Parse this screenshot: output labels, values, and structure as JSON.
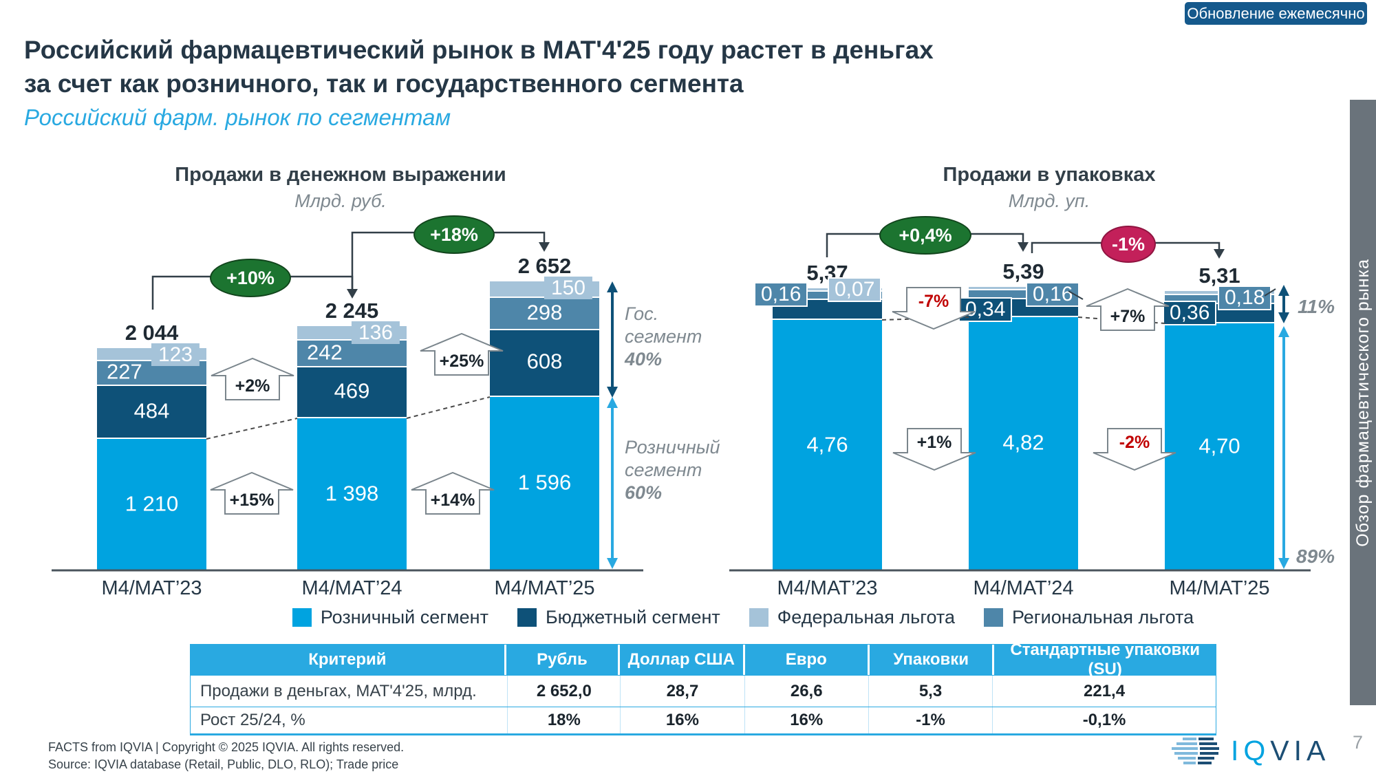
{
  "badge": {
    "label": "Обновление ежемесячно"
  },
  "header": {
    "title_line1": "Российский фармацевтический рынок в MAT'4'25 году растет в деньгах",
    "title_line2": "за счет как розничного, так и государственного сегмента",
    "subtitle": "Российский фарм. рынок по сегментам"
  },
  "side_tab": {
    "label": "Обзор фармацевтического рынка"
  },
  "colors": {
    "retail": "#00A3E0",
    "budget": "#0E5178",
    "regional": "#4E86A9",
    "federal": "#A5C3D9",
    "green": "#1C7430",
    "crimson": "#C3205A",
    "red_text": "#C00000",
    "table_header": "#29A9E1",
    "badge_bg": "#15598C",
    "tab_bg": "#6A737B"
  },
  "legend": {
    "items": [
      {
        "key": "retail",
        "label": "Розничный сегмент"
      },
      {
        "key": "budget",
        "label": "Бюджетный сегмент"
      },
      {
        "key": "federal",
        "label": "Федеральная льгота"
      },
      {
        "key": "regional",
        "label": "Региональная льгота"
      }
    ]
  },
  "chart_data": [
    {
      "id": "sales-money",
      "type": "bar",
      "subtype": "stacked",
      "title": "Продажи в денежном выражении",
      "unit": "Млрд. руб.",
      "categories": [
        "M4/MAT’23",
        "M4/MAT’24",
        "M4/MAT’25"
      ],
      "totals": [
        2044,
        2245,
        2652
      ],
      "total_labels": [
        "2 044",
        "2 245",
        "2 652"
      ],
      "series": [
        {
          "name": "Розничный сегмент",
          "key": "retail",
          "values": [
            1210,
            1398,
            1596
          ],
          "labels": [
            "1 210",
            "1 398",
            "1 596"
          ]
        },
        {
          "name": "Бюджетный сегмент",
          "key": "budget",
          "values": [
            484,
            469,
            608
          ],
          "labels": [
            "484",
            "469",
            "608"
          ]
        },
        {
          "name": "Региональная льгота",
          "key": "regional",
          "values": [
            227,
            242,
            298
          ],
          "labels": [
            "227",
            "242",
            "298"
          ]
        },
        {
          "name": "Федеральная льгота",
          "key": "federal",
          "values": [
            123,
            136,
            150
          ],
          "labels": [
            "123",
            "136",
            "150"
          ]
        }
      ],
      "total_growth": [
        "+10%",
        "+18%"
      ],
      "segment_growth": {
        "gov": [
          "+2%",
          "+25%"
        ],
        "retail": [
          "+15%",
          "+14%"
        ]
      },
      "share_labels": [
        {
          "lines": [
            "Гос.",
            "сегмент"
          ],
          "value": "40%"
        },
        {
          "lines": [
            "Розничный",
            "сегмент"
          ],
          "value": "60%"
        }
      ]
    },
    {
      "id": "sales-packs",
      "type": "bar",
      "subtype": "stacked",
      "title": "Продажи в упаковках",
      "unit": "Млрд. уп.",
      "categories": [
        "M4/MAT’23",
        "M4/MAT’24",
        "M4/MAT’25"
      ],
      "totals": [
        5.37,
        5.39,
        5.31
      ],
      "total_labels": [
        "5,37",
        "5,39",
        "5,31"
      ],
      "series": [
        {
          "name": "Розничный сегмент",
          "key": "retail",
          "values": [
            4.76,
            4.82,
            4.7
          ],
          "labels": [
            "4,76",
            "4,82",
            "4,70"
          ]
        },
        {
          "name": "Бюджетный сегмент",
          "key": "budget",
          "values": [
            0.38,
            0.34,
            0.36
          ],
          "labels": [
            "",
            "0,34",
            "0,36"
          ]
        },
        {
          "name": "Региональная льгота",
          "key": "regional",
          "values": [
            0.16,
            0.16,
            0.18
          ],
          "labels": [
            "0,16",
            "0,16",
            "0,18"
          ]
        },
        {
          "name": "Федеральная льгота",
          "key": "federal",
          "values": [
            0.07,
            0.07,
            0.07
          ],
          "labels": [
            "0,07",
            "",
            ""
          ]
        }
      ],
      "total_growth": [
        "+0,4%",
        "-1%"
      ],
      "segment_growth": {
        "gov": [
          "-7%",
          "+7%"
        ],
        "retail": [
          "+1%",
          "-2%"
        ]
      },
      "share_labels": [
        {
          "lines": [],
          "value": "11%"
        },
        {
          "lines": [],
          "value": "89%"
        }
      ]
    }
  ],
  "table": {
    "headers": [
      "Критерий",
      "Рубль",
      "Доллар США",
      "Евро",
      "Упаковки",
      "Стандартные упаковки (SU)"
    ],
    "rows": [
      {
        "label": "Продажи в деньгах, MAT'4'25, млрд.",
        "values": [
          "2 652,0",
          "28,7",
          "26,6",
          "5,3",
          "221,4"
        ]
      },
      {
        "label": "Рост 25/24, %",
        "values": [
          "18%",
          "16%",
          "16%",
          "-1%",
          "-0,1%"
        ]
      }
    ]
  },
  "footer": {
    "line1": "FACTS from IQVIA | Copyright © 2025 IQVIA. All rights reserved.",
    "line2": "Source: IQVIA database (Retail, Public, DLO, RLO); Trade price",
    "logo_text": "IQVIA",
    "page_number": "7"
  }
}
